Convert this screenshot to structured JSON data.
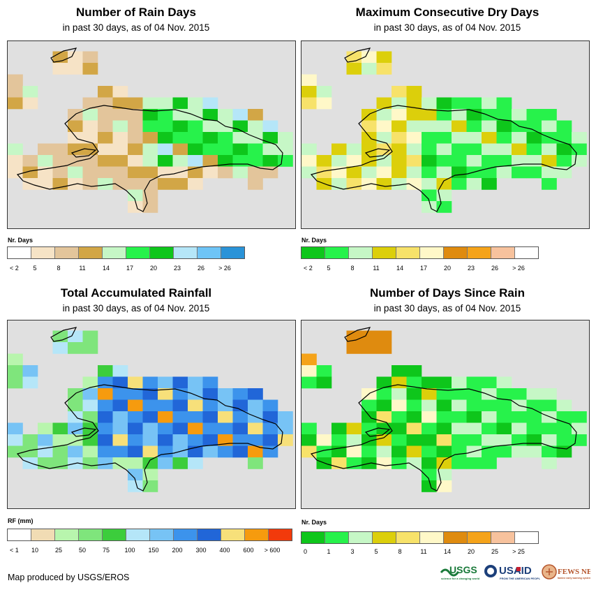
{
  "panels": [
    {
      "title": "Number of Rain Days",
      "subtitle": "in past 30 days, as of 04 Nov. 2015",
      "legend_title": "Nr. Days",
      "legend_colors": [
        "#ffffff",
        "#f6e3c6",
        "#e3c59b",
        "#d2a646",
        "#c6f7c6",
        "#27f24b",
        "#0ec61b",
        "#b5e6f8",
        "#6ec4f6",
        "#2a93d8"
      ],
      "legend_ticks": [
        "< 2",
        "5",
        "8",
        "11",
        "14",
        "17",
        "20",
        "23",
        "26",
        "> 26"
      ]
    },
    {
      "title": "Maximum Consecutive Dry Days",
      "subtitle": "in past 30 days, as of 04 Nov. 2015",
      "legend_title": "Nr. Days",
      "legend_colors": [
        "#0ec61b",
        "#27f24b",
        "#c6f7c6",
        "#dccf0b",
        "#f7e26a",
        "#fff8c8",
        "#df8b0f",
        "#f5a31a",
        "#f7c29d",
        "#ffffff"
      ],
      "legend_ticks": [
        "< 2",
        "5",
        "8",
        "11",
        "14",
        "17",
        "20",
        "23",
        "26",
        "> 26"
      ]
    },
    {
      "title": "Total Accumulated Rainfall",
      "subtitle": "in past 30 days, as of 04 Nov. 2015",
      "legend_title": "RF (mm)",
      "legend_colors": [
        "#ffffff",
        "#f1dcb4",
        "#b8f5ad",
        "#7fe57c",
        "#3ccd3c",
        "#b5e6f8",
        "#77c3f5",
        "#3c93ec",
        "#2166d8",
        "#f7e07a",
        "#f69b0e",
        "#f23a0b"
      ],
      "legend_ticks": [
        "< 1",
        "10",
        "25",
        "50",
        "75",
        "100",
        "150",
        "200",
        "300",
        "400",
        "600",
        "> 600"
      ]
    },
    {
      "title": "Number of Days Since Rain",
      "subtitle": "in past 30 days, as of 04 Nov. 2015",
      "legend_title": "Nr. Days",
      "legend_colors": [
        "#0ec61b",
        "#27f24b",
        "#c6f7c6",
        "#dccf0b",
        "#f7e26a",
        "#fff8c8",
        "#df8b0f",
        "#f5a31a",
        "#f7c29d",
        "#ffffff"
      ],
      "legend_ticks": [
        "0",
        "1",
        "3",
        "5",
        "8",
        "11",
        "14",
        "20",
        "25",
        "> 25"
      ]
    }
  ],
  "credit": "Map produced by USGS/EROS",
  "logos": {
    "usgs": "USGS",
    "usaid": "USAID",
    "fews": "FEWS NET"
  },
  "map_background": "#e0e0e0",
  "coast_color": "#000000"
}
